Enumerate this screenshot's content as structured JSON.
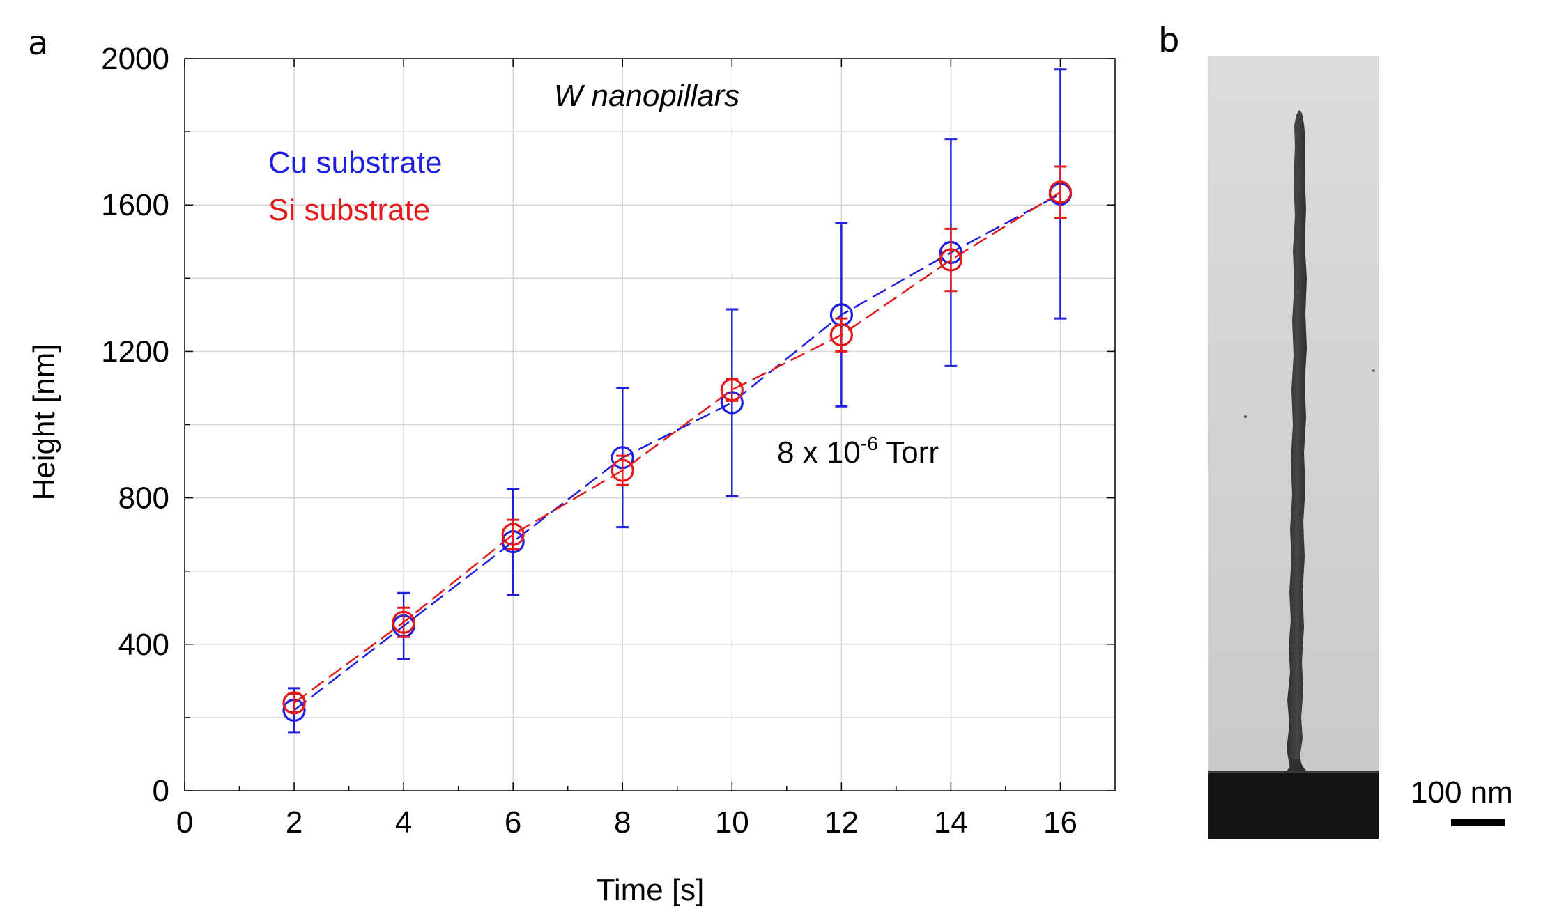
{
  "panels": {
    "a_label": "a",
    "b_label": "b"
  },
  "chart_data": {
    "type": "line",
    "title": "W nanopillars",
    "xlabel": "Time [s]",
    "ylabel": "Height [nm]",
    "xlim": [
      0,
      17
    ],
    "ylim": [
      0,
      2000
    ],
    "xticks": [
      0,
      2,
      4,
      6,
      8,
      10,
      12,
      14,
      16
    ],
    "yticks": [
      0,
      400,
      800,
      1200,
      1600,
      2000
    ],
    "grid": true,
    "annotation": {
      "base": "8 x 10",
      "exponent": "-6",
      "unit": " Torr"
    },
    "series": [
      {
        "name": "Cu substrate",
        "color": "#1f1fe0",
        "marker": "circle",
        "line": "dashed",
        "x": [
          2,
          4,
          6,
          8,
          10,
          12,
          14,
          16
        ],
        "y": [
          220,
          450,
          680,
          910,
          1060,
          1300,
          1470,
          1630
        ],
        "err": [
          60,
          90,
          145,
          190,
          255,
          250,
          310,
          340
        ]
      },
      {
        "name": "Si substrate",
        "color": "#e41a1a",
        "marker": "circle",
        "line": "dashed",
        "x": [
          2,
          4,
          6,
          8,
          10,
          12,
          14,
          16
        ],
        "y": [
          240,
          460,
          700,
          875,
          1095,
          1245,
          1450,
          1635
        ],
        "err": [
          25,
          40,
          40,
          40,
          30,
          45,
          85,
          70
        ]
      }
    ]
  },
  "micrograph": {
    "icon": "tem-micrograph-nanopillar",
    "scale_bar_label": "100 nm"
  }
}
